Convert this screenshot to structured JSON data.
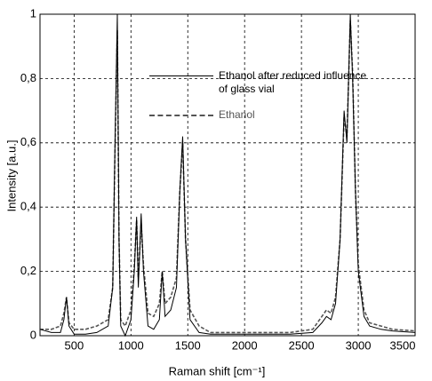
{
  "chart_data": {
    "type": "line",
    "xlabel": "Raman shift [cm⁻¹]",
    "ylabel": "Intensity [a.u.]",
    "x": [
      200,
      300,
      380,
      410,
      433,
      455,
      500,
      600,
      700,
      800,
      840,
      860,
      880,
      895,
      910,
      950,
      1000,
      1030,
      1050,
      1065,
      1090,
      1110,
      1150,
      1200,
      1250,
      1275,
      1300,
      1350,
      1400,
      1430,
      1455,
      1480,
      1520,
      1600,
      1700,
      2000,
      2400,
      2600,
      2680,
      2720,
      2760,
      2800,
      2840,
      2875,
      2900,
      2930,
      2950,
      2975,
      3000,
      3050,
      3100,
      3200,
      3300,
      3500
    ],
    "series": [
      {
        "name": "Ethanol after reduced influence of  glass vial",
        "color": "#000000",
        "dash": false,
        "values": [
          0.02,
          0.01,
          0.01,
          0.05,
          0.12,
          0.03,
          0.005,
          0.005,
          0.01,
          0.03,
          0.15,
          0.6,
          1.0,
          0.3,
          0.03,
          0.0,
          0.05,
          0.2,
          0.37,
          0.15,
          0.38,
          0.2,
          0.03,
          0.02,
          0.05,
          0.2,
          0.06,
          0.08,
          0.15,
          0.45,
          0.62,
          0.3,
          0.05,
          0.01,
          0.005,
          0.005,
          0.005,
          0.01,
          0.04,
          0.06,
          0.05,
          0.1,
          0.3,
          0.7,
          0.6,
          1.0,
          0.8,
          0.45,
          0.2,
          0.06,
          0.03,
          0.02,
          0.015,
          0.01
        ]
      },
      {
        "name": "Ethanol",
        "color": "#555555",
        "dash": true,
        "values": [
          0.02,
          0.02,
          0.03,
          0.07,
          0.12,
          0.04,
          0.02,
          0.02,
          0.03,
          0.05,
          0.15,
          0.58,
          0.95,
          0.3,
          0.05,
          0.03,
          0.08,
          0.22,
          0.36,
          0.18,
          0.35,
          0.22,
          0.07,
          0.06,
          0.1,
          0.2,
          0.1,
          0.12,
          0.18,
          0.45,
          0.6,
          0.3,
          0.08,
          0.03,
          0.01,
          0.01,
          0.01,
          0.02,
          0.06,
          0.08,
          0.07,
          0.12,
          0.3,
          0.68,
          0.62,
          0.98,
          0.82,
          0.45,
          0.22,
          0.08,
          0.04,
          0.03,
          0.02,
          0.015
        ]
      }
    ],
    "xlim": [
      200,
      3500
    ],
    "xticks": [
      500,
      1000,
      1500,
      2000,
      2500,
      3000,
      3500
    ],
    "ylim": [
      0,
      1
    ],
    "yticks": [
      0,
      {
        "value": 0.2,
        "label": "0,2"
      },
      {
        "value": 0.4,
        "label": "0,4"
      },
      {
        "value": 0.6,
        "label": "0,6"
      },
      {
        "value": 0.8,
        "label": "0,8"
      },
      1
    ],
    "grid": true
  }
}
